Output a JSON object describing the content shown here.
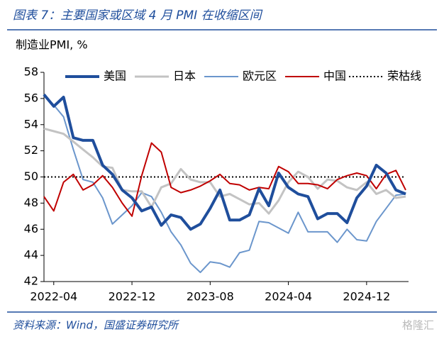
{
  "chart_data": {
    "type": "line",
    "title": "图表 7：主要国家或区域 4 月 PMI 在收缩区间",
    "y_label": "制造业PMI, %",
    "source": "资料来源：Wind，国盛证券研究所",
    "watermark": "格隆汇",
    "categories": [
      null,
      "2022-04",
      null,
      null,
      null,
      null,
      null,
      null,
      null,
      "2022-12",
      null,
      null,
      null,
      null,
      null,
      null,
      null,
      "2023-08",
      null,
      null,
      null,
      null,
      null,
      null,
      null,
      "2024-04",
      null,
      null,
      null,
      null,
      null,
      null,
      null,
      "2024-12",
      null,
      null,
      null,
      null
    ],
    "series": [
      {
        "name": "美国",
        "color": "#1f4e9c",
        "width": 4,
        "values": [
          56.3,
          55.4,
          56.1,
          53.0,
          52.8,
          52.8,
          50.9,
          50.2,
          49.0,
          48.4,
          47.4,
          47.7,
          46.3,
          47.1,
          46.9,
          46.0,
          46.4,
          47.6,
          49.0,
          46.7,
          46.7,
          47.1,
          49.1,
          47.8,
          50.3,
          49.2,
          48.7,
          48.5,
          46.8,
          47.2,
          47.2,
          46.5,
          48.4,
          49.3,
          50.9,
          50.3,
          49.0,
          48.7
        ]
      },
      {
        "name": "日本",
        "color": "#c3c3c3",
        "width": 3,
        "values": [
          53.7,
          53.5,
          53.3,
          52.7,
          52.1,
          51.5,
          50.8,
          50.7,
          49.0,
          48.9,
          48.9,
          47.7,
          49.2,
          49.5,
          50.6,
          49.8,
          49.6,
          49.6,
          48.5,
          48.7,
          48.3,
          47.9,
          48.0,
          47.2,
          48.2,
          49.6,
          50.4,
          50.0,
          49.1,
          49.8,
          49.7,
          49.2,
          49.0,
          49.6,
          48.7,
          49.0,
          48.4,
          48.5
        ]
      },
      {
        "name": "欧元区",
        "color": "#6b96cc",
        "width": 2,
        "values": [
          56.3,
          55.5,
          54.6,
          52.1,
          49.8,
          49.6,
          48.4,
          46.4,
          47.1,
          47.8,
          48.8,
          48.5,
          47.3,
          45.8,
          44.8,
          43.4,
          42.7,
          43.5,
          43.4,
          43.1,
          44.2,
          44.4,
          46.6,
          46.5,
          46.1,
          45.7,
          47.3,
          45.8,
          45.8,
          45.8,
          45.0,
          46.0,
          45.2,
          45.1,
          46.6,
          47.6,
          48.6,
          48.7
        ]
      },
      {
        "name": "中国",
        "color": "#c00000",
        "width": 2,
        "values": [
          48.5,
          47.4,
          49.6,
          50.2,
          49.0,
          49.4,
          50.1,
          49.2,
          48.0,
          47.0,
          50.1,
          52.6,
          51.9,
          49.2,
          48.8,
          49.0,
          49.3,
          49.7,
          50.2,
          49.5,
          49.4,
          49.0,
          49.2,
          49.1,
          50.8,
          50.4,
          49.5,
          49.5,
          49.4,
          49.1,
          49.8,
          50.1,
          50.3,
          50.1,
          49.1,
          50.2,
          50.5,
          49.0
        ]
      }
    ],
    "reference_line": {
      "name": "荣枯线",
      "value": 50,
      "color": "#000000"
    },
    "ylim": [
      42,
      58
    ],
    "yticks": [
      42,
      44,
      46,
      48,
      50,
      52,
      54,
      56,
      58
    ],
    "legend": "top"
  }
}
